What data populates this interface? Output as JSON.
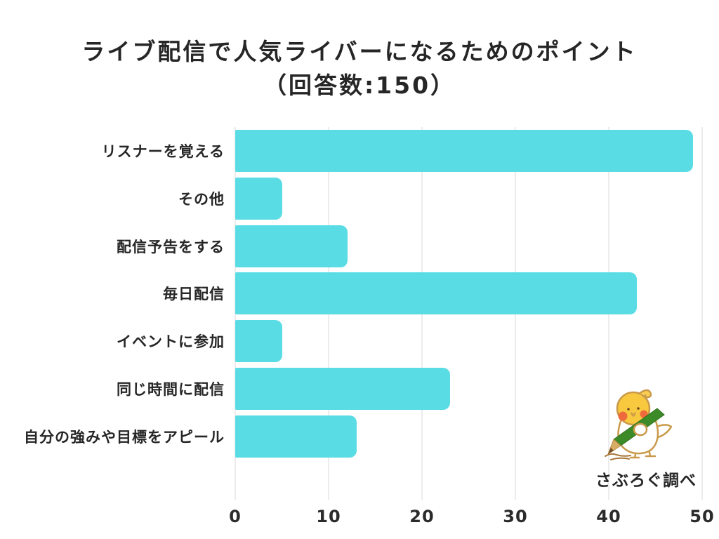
{
  "title": {
    "line1": "ライブ配信で人気ライバーになるためのポイント",
    "line2": "（回答数:150）"
  },
  "chart_data": {
    "type": "bar",
    "orientation": "horizontal",
    "title": "ライブ配信で人気ライバーになるためのポイント（回答数:150）",
    "categories": [
      "リスナーを覚える",
      "その他",
      "配信予告をする",
      "毎日配信",
      "イベントに参加",
      "同じ時間に配信",
      "自分の強みや目標をアピール"
    ],
    "values": [
      49,
      5,
      12,
      43,
      5,
      23,
      13
    ],
    "xlabel": "",
    "ylabel": "",
    "xlim": [
      0,
      50
    ],
    "xticks": [
      "0",
      "10",
      "20",
      "30",
      "40",
      "50"
    ],
    "grid": true,
    "legend": "none",
    "bar_color": "#5ADCE4",
    "gridline_color": "#d9d9d9",
    "text_color": "#262626"
  },
  "footer": {
    "credit": "さぶろぐ調べ"
  },
  "mascot": {
    "name": "saburogu-bird",
    "description": "yellow cockatiel mascot drawing with a green pencil"
  }
}
